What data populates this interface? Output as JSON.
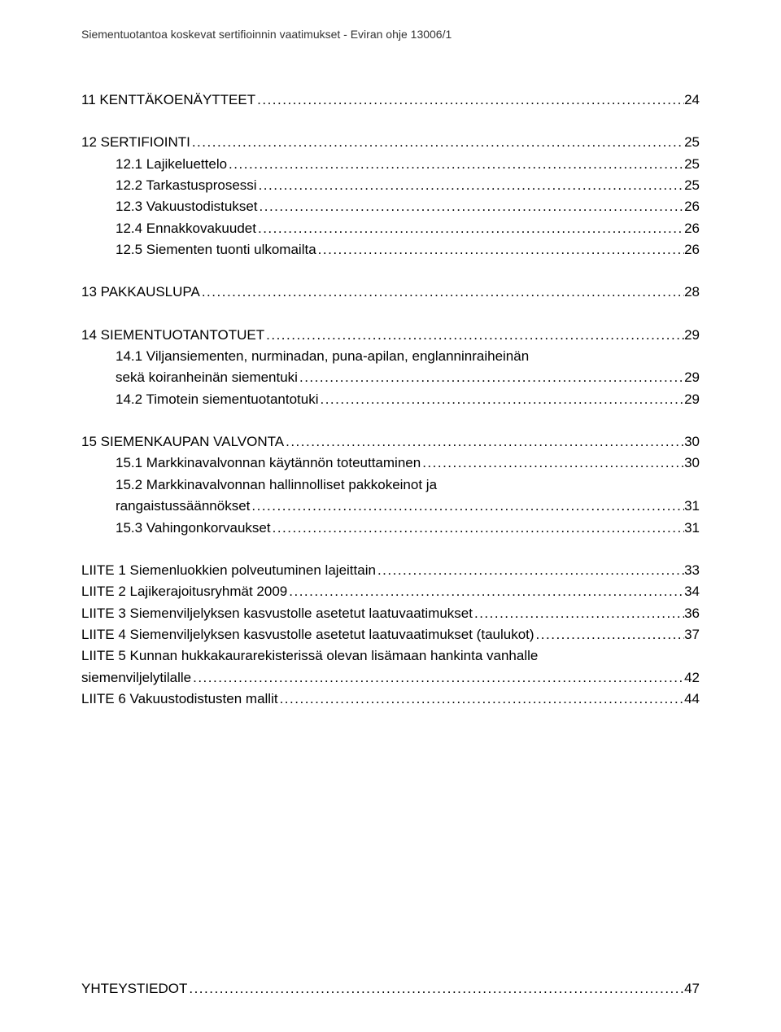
{
  "header": "Siementuotantoa koskevat sertifioinnin vaatimukset - Eviran ohje 13006/1",
  "entries": [
    {
      "label": "11 KENTTÄKOENÄYTTEET",
      "page": "24",
      "indent": false,
      "gapAfter": true
    },
    {
      "label": "12 SERTIFIOINTI ",
      "page": "25",
      "indent": false
    },
    {
      "label": "12.1 Lajikeluettelo",
      "page": "25",
      "indent": true
    },
    {
      "label": "12.2 Tarkastusprosessi",
      "page": "25",
      "indent": true
    },
    {
      "label": "12.3 Vakuustodistukset",
      "page": "26",
      "indent": true
    },
    {
      "label": "12.4 Ennakkovakuudet",
      "page": "26",
      "indent": true
    },
    {
      "label": "12.5 Siementen tuonti ulkomailta",
      "page": "26",
      "indent": true,
      "gapAfter": true
    },
    {
      "label": "13 PAKKAUSLUPA ",
      "page": "28",
      "indent": false,
      "gapAfter": true
    },
    {
      "label": "14 SIEMENTUOTANTOTUET",
      "page": "29",
      "indent": false
    },
    {
      "wrap": "14.1 Viljansiementen, nurminadan, puna-apilan, englanninraiheinän"
    },
    {
      "label": "sekä koiranheinän siementuki",
      "page": "29",
      "indent": true
    },
    {
      "label": "14.2 Timotein siementuotantotuki",
      "page": "29",
      "indent": true,
      "gapAfter": true
    },
    {
      "label": "15 SIEMENKAUPAN VALVONTA",
      "page": "30",
      "indent": false
    },
    {
      "label": "15.1 Markkinavalvonnan käytännön toteuttaminen",
      "page": "30",
      "indent": true
    },
    {
      "wrap": "15.2 Markkinavalvonnan hallinnolliset pakkokeinot ja"
    },
    {
      "label": "rangaistussäännökset",
      "page": "31",
      "indent": true
    },
    {
      "label": "15.3 Vahingonkorvaukset",
      "page": "31",
      "indent": true,
      "gapAfter": true
    },
    {
      "label": "LIITE 1 Siemenluokkien polveutuminen lajeittain",
      "page": "33",
      "indent": false
    },
    {
      "label": "LIITE 2 Lajikerajoitusryhmät 2009",
      "page": "34",
      "indent": false
    },
    {
      "label": "LIITE 3 Siemenviljelyksen kasvustolle asetetut laatuvaatimukset",
      "page": "36",
      "indent": false
    },
    {
      "label": "LIITE 4 Siemenviljelyksen kasvustolle asetetut laatuvaatimukset (taulukot)",
      "page": "37",
      "indent": false
    },
    {
      "noDotsWrap": "LIITE 5 Kunnan hukkakaurarekisterissä olevan lisämaan hankinta vanhalle"
    },
    {
      "label": "siemenviljelytilalle ",
      "page": "42",
      "indent": false
    },
    {
      "label": "LIITE 6 Vakuustodistusten mallit",
      "page": "44",
      "indent": false
    }
  ],
  "footerEntry": {
    "label": "YHTEYSTIEDOT",
    "page": "47"
  }
}
